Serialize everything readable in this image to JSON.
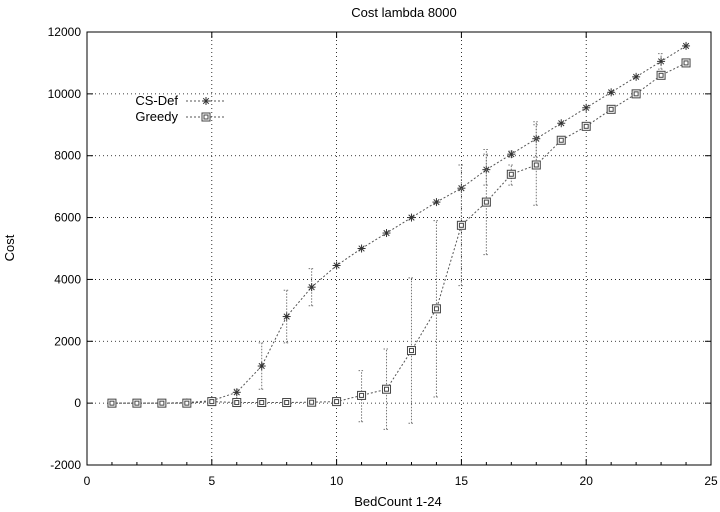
{
  "chart_data": {
    "type": "line",
    "title": "Cost lambda 8000",
    "xlabel": "BedCount 1-24",
    "ylabel": "Cost",
    "xlim": [
      0,
      25
    ],
    "ylim": [
      -2000,
      12000
    ],
    "xticks": [
      0,
      5,
      10,
      15,
      20,
      25
    ],
    "yticks": [
      -2000,
      0,
      2000,
      4000,
      6000,
      8000,
      10000,
      12000
    ],
    "grid": true,
    "legend_position": "top-left",
    "x": [
      1,
      2,
      3,
      4,
      5,
      6,
      7,
      8,
      9,
      10,
      11,
      12,
      13,
      14,
      15,
      16,
      17,
      18,
      19,
      20,
      21,
      22,
      23,
      24
    ],
    "series": [
      {
        "name": "CS-Def",
        "marker": "star",
        "color": "#555555",
        "values": [
          0,
          0,
          0,
          20,
          80,
          350,
          1200,
          2800,
          3750,
          4450,
          5000,
          5500,
          6000,
          6500,
          6950,
          7550,
          8050,
          8550,
          9050,
          9550,
          10050,
          10550,
          11050,
          11550
        ],
        "err_low": [
          0,
          0,
          0,
          0,
          0,
          150,
          450,
          1950,
          3150,
          4450,
          5000,
          5500,
          6000,
          6500,
          6950,
          7050,
          7950,
          7950,
          9050,
          9550,
          10050,
          10550,
          10800,
          11550
        ],
        "err_high": [
          0,
          0,
          0,
          0,
          0,
          450,
          1950,
          3650,
          4350,
          4450,
          5000,
          5500,
          6000,
          6500,
          6950,
          8050,
          8150,
          9100,
          9050,
          9550,
          10050,
          10550,
          11300,
          11550
        ]
      },
      {
        "name": "Greedy",
        "marker": "box",
        "color": "#555555",
        "values": [
          0,
          0,
          0,
          0,
          50,
          20,
          20,
          20,
          30,
          50,
          250,
          450,
          1700,
          3050,
          5750,
          6500,
          7400,
          7700,
          8500,
          8950,
          9500,
          10000,
          10600,
          11000
        ],
        "err_low": [
          0,
          0,
          0,
          0,
          0,
          0,
          0,
          0,
          0,
          0,
          -600,
          -850,
          -650,
          200,
          3800,
          4800,
          7050,
          6400,
          8500,
          8950,
          9500,
          10000,
          10600,
          11000
        ],
        "err_high": [
          0,
          0,
          0,
          0,
          0,
          0,
          0,
          0,
          0,
          0,
          1050,
          1750,
          4050,
          5900,
          7700,
          8200,
          7700,
          9000,
          8500,
          8950,
          9500,
          10000,
          10600,
          11000
        ]
      }
    ]
  }
}
